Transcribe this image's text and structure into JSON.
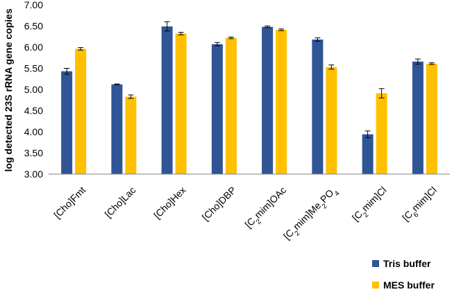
{
  "chart_data": {
    "type": "bar",
    "categories": [
      {
        "parts": [
          {
            "t": "[Cho]Fmt"
          }
        ]
      },
      {
        "parts": [
          {
            "t": "[Cho]Lac"
          }
        ]
      },
      {
        "parts": [
          {
            "t": "[Cho]Hex"
          }
        ]
      },
      {
        "parts": [
          {
            "t": "[Cho]DBP"
          }
        ]
      },
      {
        "parts": [
          {
            "t": "[C"
          },
          {
            "t": "2",
            "sub": true
          },
          {
            "t": "mim]OAc"
          }
        ]
      },
      {
        "parts": [
          {
            "t": "[C"
          },
          {
            "t": "2",
            "sub": true
          },
          {
            "t": "mim]Me"
          },
          {
            "t": "2",
            "sub": true
          },
          {
            "t": "PO"
          },
          {
            "t": "4",
            "sub": true
          }
        ]
      },
      {
        "parts": [
          {
            "t": "[C"
          },
          {
            "t": "2",
            "sub": true
          },
          {
            "t": "mim]Cl"
          }
        ]
      },
      {
        "parts": [
          {
            "t": "[C"
          },
          {
            "t": "6",
            "sub": true
          },
          {
            "t": "mim]Cl"
          }
        ]
      }
    ],
    "series": [
      {
        "name": "Tris buffer",
        "color": "#2F5597",
        "values": [
          5.43,
          5.12,
          6.49,
          6.07,
          6.48,
          6.18,
          3.94,
          5.66
        ],
        "errors": [
          0.07,
          0.01,
          0.11,
          0.04,
          0.02,
          0.04,
          0.08,
          0.06
        ]
      },
      {
        "name": "MES buffer",
        "color": "#FFC000",
        "values": [
          5.96,
          4.83,
          6.32,
          6.22,
          6.41,
          5.53,
          4.91,
          5.61
        ],
        "errors": [
          0.03,
          0.04,
          0.03,
          0.02,
          0.02,
          0.05,
          0.11,
          0.02
        ]
      }
    ],
    "ylabel": "log detected 23S rRNA gene copies",
    "ylim": [
      3.0,
      7.0
    ],
    "yticks": [
      "3.00",
      "3.50",
      "4.00",
      "4.50",
      "5.00",
      "5.50",
      "6.00",
      "6.50",
      "7.00"
    ],
    "grid": false,
    "legend_position": "bottom-right"
  }
}
